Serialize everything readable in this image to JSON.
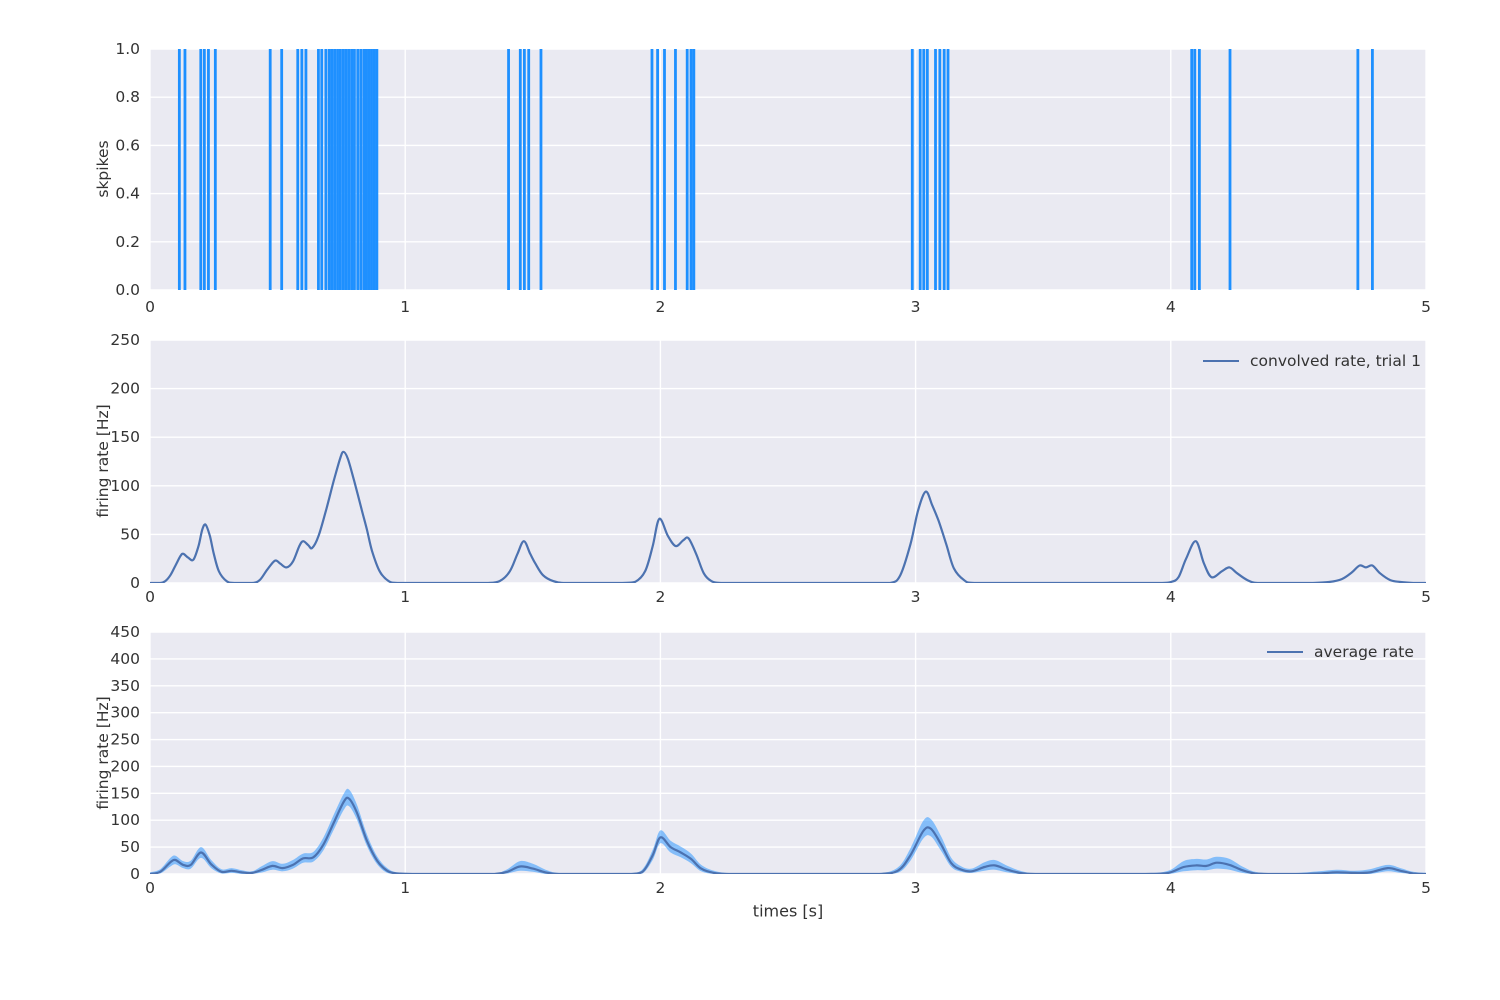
{
  "figure": {
    "background": "#ffffff",
    "axes_background": "#eaeaf2",
    "grid_color": "#ffffff",
    "text_color": "#333333"
  },
  "chart_data": [
    {
      "type": "event-raster",
      "title": "",
      "ylabel": "skpikes",
      "xlim": [
        0,
        5
      ],
      "ylim": [
        0,
        1
      ],
      "grid": true,
      "xtick_values": [
        0,
        1,
        2,
        3,
        4,
        5
      ],
      "xtick_labels": [
        "0",
        "1",
        "2",
        "3",
        "4",
        "5"
      ],
      "ytick_values": [
        0.0,
        0.2,
        0.4,
        0.6,
        0.8,
        1.0
      ],
      "ytick_labels": [
        "0.0",
        "0.2",
        "0.4",
        "0.6",
        "0.8",
        "1.0"
      ],
      "color": "#1e90ff",
      "spike_times": [
        0.115,
        0.137,
        0.199,
        0.213,
        0.229,
        0.256,
        0.471,
        0.516,
        0.579,
        0.595,
        0.611,
        0.66,
        0.673,
        0.689,
        0.702,
        0.713,
        0.724,
        0.735,
        0.746,
        0.757,
        0.768,
        0.779,
        0.79,
        0.801,
        0.814,
        0.826,
        0.838,
        0.848,
        0.858,
        0.868,
        0.878,
        0.889,
        1.405,
        1.451,
        1.467,
        1.484,
        1.532,
        1.967,
        1.989,
        2.016,
        2.059,
        2.105,
        2.12,
        2.131,
        2.987,
        3.018,
        3.032,
        3.046,
        3.078,
        3.095,
        3.112,
        3.127,
        4.082,
        4.094,
        4.112,
        4.232,
        4.733,
        4.79
      ]
    },
    {
      "type": "line",
      "title": "",
      "ylabel": "firing rate [Hz]",
      "legend_label": "convolved rate, trial 1",
      "legend_position": "upper right",
      "xlim": [
        0,
        5
      ],
      "ylim": [
        0,
        250
      ],
      "grid": true,
      "xtick_values": [
        0,
        1,
        2,
        3,
        4,
        5
      ],
      "xtick_labels": [
        "0",
        "1",
        "2",
        "3",
        "4",
        "5"
      ],
      "ytick_values": [
        0,
        50,
        100,
        150,
        200,
        250
      ],
      "ytick_labels": [
        "0",
        "50",
        "100",
        "150",
        "200",
        "250"
      ],
      "color": "#4c72b0",
      "x": [
        0,
        0.04,
        0.06,
        0.08,
        0.1,
        0.12,
        0.131,
        0.15,
        0.17,
        0.19,
        0.205,
        0.218,
        0.235,
        0.25,
        0.27,
        0.3,
        0.33,
        0.4,
        0.43,
        0.46,
        0.49,
        0.51,
        0.535,
        0.56,
        0.585,
        0.6,
        0.62,
        0.635,
        0.66,
        0.69,
        0.72,
        0.745,
        0.758,
        0.775,
        0.8,
        0.83,
        0.85,
        0.87,
        0.9,
        0.935,
        0.97,
        1.05,
        1.15,
        1.25,
        1.32,
        1.37,
        1.41,
        1.44,
        1.465,
        1.49,
        1.51,
        1.54,
        1.58,
        1.63,
        1.75,
        1.85,
        1.9,
        1.94,
        1.97,
        1.996,
        2.03,
        2.06,
        2.09,
        2.11,
        2.14,
        2.17,
        2.2,
        2.24,
        2.35,
        2.5,
        2.65,
        2.8,
        2.9,
        2.94,
        2.98,
        3.01,
        3.04,
        3.065,
        3.09,
        3.12,
        3.15,
        3.19,
        3.23,
        3.4,
        3.6,
        3.8,
        3.95,
        4.0,
        4.03,
        4.06,
        4.098,
        4.13,
        4.16,
        4.2,
        4.23,
        4.26,
        4.3,
        4.34,
        4.45,
        4.55,
        4.62,
        4.67,
        4.71,
        4.74,
        4.765,
        4.79,
        4.82,
        4.86,
        4.9,
        4.95,
        5.0
      ],
      "y": [
        0,
        0,
        2,
        8,
        18,
        28,
        30,
        26,
        24,
        38,
        55,
        60,
        48,
        30,
        12,
        2,
        0,
        0,
        3,
        14,
        23,
        20,
        16,
        22,
        38,
        43,
        39,
        36,
        48,
        75,
        105,
        128,
        135,
        128,
        105,
        75,
        55,
        33,
        12,
        2,
        0,
        0,
        0,
        0,
        0,
        2,
        12,
        30,
        43,
        30,
        20,
        8,
        2,
        0,
        0,
        0,
        1,
        12,
        38,
        66,
        48,
        38,
        44,
        46,
        30,
        10,
        2,
        0,
        0,
        0,
        0,
        0,
        0,
        8,
        40,
        75,
        94,
        80,
        64,
        40,
        15,
        3,
        0,
        0,
        0,
        0,
        0,
        1,
        6,
        25,
        43,
        20,
        6,
        12,
        16,
        10,
        3,
        0,
        0,
        0,
        1,
        4,
        11,
        18,
        16,
        18,
        10,
        3,
        1,
        0,
        0
      ]
    },
    {
      "type": "line-band",
      "title": "",
      "ylabel": "firing rate [Hz]",
      "xlabel": "times [s]",
      "legend_label": "average rate",
      "legend_position": "upper right",
      "xlim": [
        0,
        5
      ],
      "ylim": [
        0,
        450
      ],
      "grid": true,
      "xtick_values": [
        0,
        1,
        2,
        3,
        4,
        5
      ],
      "xtick_labels": [
        "0",
        "1",
        "2",
        "3",
        "4",
        "5"
      ],
      "ytick_values": [
        0,
        50,
        100,
        150,
        200,
        250,
        300,
        350,
        400,
        450
      ],
      "ytick_labels": [
        "0",
        "50",
        "100",
        "150",
        "200",
        "250",
        "300",
        "350",
        "400",
        "450"
      ],
      "line_color": "#4c72b0",
      "band_color": "#1e90ff",
      "band_opacity": 0.5,
      "x": [
        0,
        0.04,
        0.08,
        0.1,
        0.13,
        0.16,
        0.2,
        0.24,
        0.28,
        0.32,
        0.36,
        0.4,
        0.44,
        0.48,
        0.52,
        0.56,
        0.6,
        0.64,
        0.68,
        0.72,
        0.76,
        0.78,
        0.81,
        0.85,
        0.89,
        0.93,
        0.97,
        1.05,
        1.15,
        1.25,
        1.35,
        1.4,
        1.45,
        1.5,
        1.55,
        1.6,
        1.7,
        1.8,
        1.88,
        1.93,
        1.97,
        2.0,
        2.04,
        2.08,
        2.12,
        2.16,
        2.21,
        2.28,
        2.4,
        2.55,
        2.7,
        2.85,
        2.93,
        2.98,
        3.03,
        3.06,
        3.1,
        3.14,
        3.18,
        3.22,
        3.27,
        3.31,
        3.36,
        3.41,
        3.47,
        3.6,
        3.75,
        3.9,
        3.99,
        4.05,
        4.1,
        4.14,
        4.18,
        4.23,
        4.28,
        4.33,
        4.4,
        4.5,
        4.58,
        4.65,
        4.72,
        4.78,
        4.85,
        4.9,
        4.95,
        5.0
      ],
      "mean": [
        0,
        4,
        22,
        26,
        17,
        17,
        40,
        18,
        4,
        6,
        3,
        2,
        8,
        15,
        11,
        17,
        29,
        31,
        55,
        95,
        135,
        140,
        115,
        62,
        25,
        6,
        1,
        0,
        0,
        0,
        0,
        4,
        14,
        10,
        3,
        0,
        0,
        0,
        0,
        4,
        35,
        68,
        50,
        40,
        28,
        10,
        2,
        0,
        0,
        0,
        0,
        0,
        6,
        35,
        80,
        84,
        55,
        20,
        8,
        5,
        13,
        16,
        8,
        2,
        0,
        0,
        0,
        0,
        2,
        13,
        16,
        15,
        21,
        17,
        7,
        1,
        0,
        0,
        1,
        3,
        2,
        3,
        11,
        6,
        1,
        0
      ],
      "upper": [
        3,
        9,
        30,
        34,
        24,
        25,
        50,
        26,
        9,
        11,
        7,
        5,
        15,
        24,
        19,
        26,
        38,
        41,
        68,
        110,
        150,
        157,
        130,
        74,
        33,
        11,
        3,
        1,
        1,
        1,
        1,
        9,
        24,
        19,
        8,
        2,
        1,
        1,
        1,
        9,
        45,
        81,
        62,
        51,
        38,
        17,
        6,
        1,
        1,
        1,
        1,
        1,
        12,
        48,
        99,
        102,
        70,
        30,
        14,
        10,
        22,
        26,
        15,
        6,
        1,
        1,
        1,
        1,
        6,
        24,
        28,
        27,
        32,
        28,
        14,
        4,
        1,
        2,
        5,
        8,
        6,
        9,
        17,
        11,
        4,
        2
      ],
      "lower": [
        0,
        1,
        14,
        18,
        11,
        10,
        30,
        11,
        1,
        2,
        0,
        0,
        3,
        8,
        5,
        10,
        21,
        23,
        44,
        82,
        120,
        126,
        102,
        52,
        18,
        2,
        0,
        0,
        0,
        0,
        0,
        1,
        6,
        4,
        0,
        0,
        0,
        0,
        0,
        1,
        26,
        57,
        40,
        31,
        20,
        5,
        0,
        0,
        0,
        0,
        0,
        0,
        2,
        25,
        66,
        70,
        43,
        13,
        4,
        2,
        6,
        8,
        3,
        0,
        0,
        0,
        0,
        0,
        0,
        5,
        7,
        7,
        10,
        8,
        2,
        0,
        0,
        0,
        0,
        0,
        0,
        0,
        5,
        2,
        0,
        0
      ]
    }
  ]
}
